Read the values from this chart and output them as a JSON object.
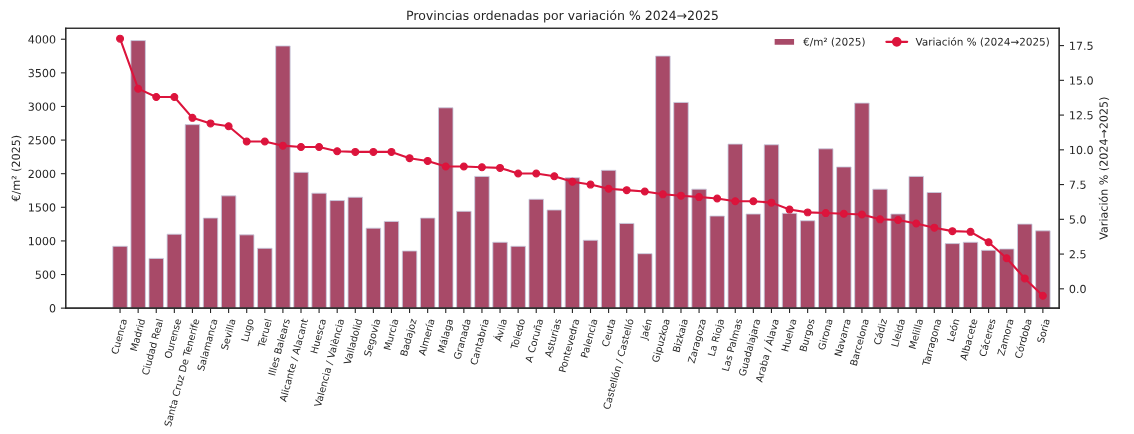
{
  "chart_data": {
    "type": "bar",
    "title": "Provincias ordenadas por variación % 2024→2025",
    "ylabel": "€/m² (2025)",
    "y2label": "Variación % (2024→2025)",
    "categories": [
      "Cuenca",
      "Madrid",
      "Ciudad Real",
      "Ourense",
      "Santa Cruz De Tenerife",
      "Salamanca",
      "Sevilla",
      "Lugo",
      "Teruel",
      "Illes Balears",
      "Alicante / Alacant",
      "Huesca",
      "Valencia / València",
      "Valladolid",
      "Segovia",
      "Murcia",
      "Badajoz",
      "Almería",
      "Málaga",
      "Granada",
      "Cantabria",
      "Ávila",
      "Toledo",
      "A Coruña",
      "Asturias",
      "Pontevedra",
      "Palencia",
      "Ceuta",
      "Castellón / Castelló",
      "Jaén",
      "Gipuzkoa",
      "Bizkaia",
      "Zaragoza",
      "La Rioja",
      "Las Palmas",
      "Guadalajara",
      "Araba / Álava",
      "Huelva",
      "Burgos",
      "Girona",
      "Navarra",
      "Barcelona",
      "Cádiz",
      "Lleida",
      "Melilla",
      "Tarragona",
      "León",
      "Albacete",
      "Cáceres",
      "Zamora",
      "Córdoba",
      "Soria"
    ],
    "series": [
      {
        "name": "€/m² (2025)",
        "color": "#a84a68",
        "values": [
          920,
          3980,
          740,
          1100,
          2730,
          1340,
          1670,
          1090,
          890,
          3900,
          2020,
          1710,
          1600,
          1650,
          1190,
          1290,
          850,
          1340,
          2980,
          1440,
          1960,
          980,
          920,
          1620,
          1460,
          1940,
          1010,
          2050,
          1260,
          810,
          3750,
          3060,
          1770,
          1370,
          2440,
          1400,
          2430,
          1410,
          1300,
          2370,
          2100,
          3050,
          1770,
          1400,
          1960,
          1720,
          960,
          980,
          860,
          880,
          1250,
          1150
        ]
      },
      {
        "name": "Variación % (2024→2025)",
        "type": "line",
        "axis": "y2",
        "color": "#dc143c",
        "marker": "circle",
        "values": [
          18.0,
          14.4,
          13.8,
          13.8,
          12.3,
          11.9,
          11.7,
          10.6,
          10.6,
          10.3,
          10.2,
          10.2,
          9.9,
          9.85,
          9.85,
          9.85,
          9.4,
          9.2,
          8.8,
          8.8,
          8.75,
          8.7,
          8.3,
          8.3,
          8.1,
          7.7,
          7.5,
          7.2,
          7.1,
          7.0,
          6.8,
          6.7,
          6.6,
          6.5,
          6.3,
          6.3,
          6.2,
          5.7,
          5.5,
          5.45,
          5.4,
          5.35,
          5.0,
          4.95,
          4.7,
          4.4,
          4.15,
          4.1,
          3.35,
          2.2,
          0.75,
          -0.5
        ]
      }
    ],
    "ylim": [
      0,
      4164
    ],
    "yticks": [
      0,
      500,
      1000,
      1500,
      2000,
      2500,
      3000,
      3500,
      4000
    ],
    "y2lim": [
      -1.39,
      18.75
    ],
    "y2ticks": [
      {
        "value": 0,
        "label": "0.0"
      },
      {
        "value": 2.5,
        "label": "2.5"
      },
      {
        "value": 5,
        "label": "5.0"
      },
      {
        "value": 7.5,
        "label": "7.5"
      },
      {
        "value": 10,
        "label": "10.0"
      },
      {
        "value": 12.5,
        "label": "12.5"
      },
      {
        "value": 15,
        "label": "15.0"
      },
      {
        "value": 17.5,
        "label": "17.5"
      }
    ],
    "legend": "top right",
    "grid": false
  }
}
